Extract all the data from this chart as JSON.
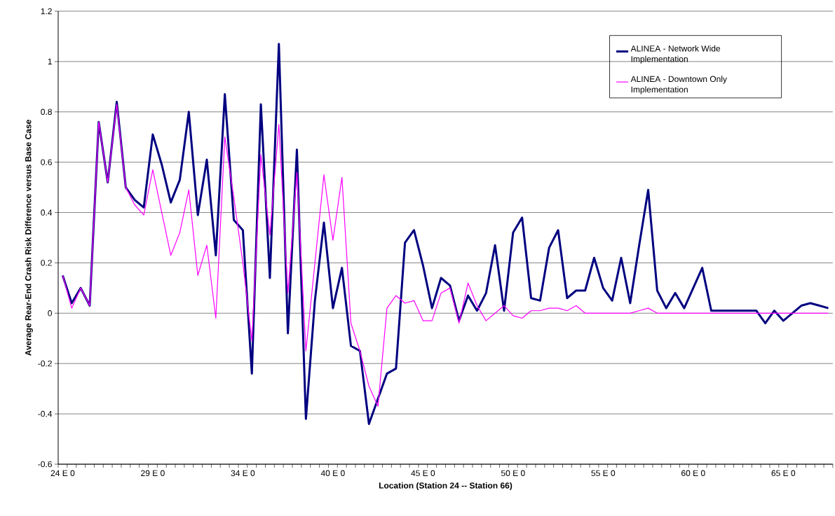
{
  "chart_data": {
    "type": "line",
    "ylabel": "Average Rear-End Crash Risk Difference versus Base Case",
    "xlabel": "Location (Station 24 -- Station 66)",
    "categories": [
      "24 E 0",
      null,
      null,
      null,
      null,
      null,
      null,
      null,
      null,
      null,
      "29 E 0",
      null,
      null,
      null,
      null,
      null,
      null,
      null,
      null,
      null,
      "34 E 0",
      null,
      null,
      null,
      null,
      null,
      null,
      null,
      null,
      null,
      "40 E 0",
      null,
      null,
      null,
      null,
      null,
      null,
      null,
      null,
      null,
      "45 E 0",
      null,
      null,
      null,
      null,
      null,
      null,
      null,
      null,
      null,
      "50 E 0",
      null,
      null,
      null,
      null,
      null,
      null,
      null,
      null,
      null,
      "55 E 0",
      null,
      null,
      null,
      null,
      null,
      null,
      null,
      null,
      null,
      "60 E 0",
      null,
      null,
      null,
      null,
      null,
      null,
      null,
      null,
      null,
      "65 E 0",
      null,
      null,
      null,
      null,
      null
    ],
    "series": [
      {
        "name": "ALINEA - Network Wide Implementation",
        "color": "#000080",
        "values": [
          0.15,
          0.04,
          0.1,
          0.03,
          0.76,
          0.52,
          0.84,
          0.5,
          0.45,
          0.42,
          0.71,
          0.59,
          0.44,
          0.53,
          0.8,
          0.39,
          0.61,
          0.23,
          0.87,
          0.37,
          0.33,
          -0.24,
          0.83,
          0.14,
          1.07,
          -0.08,
          0.65,
          -0.42,
          0.05,
          0.36,
          0.02,
          0.18,
          -0.13,
          -0.15,
          -0.44,
          -0.34,
          -0.24,
          -0.22,
          0.28,
          0.33,
          0.19,
          0.02,
          0.14,
          0.11,
          -0.03,
          0.07,
          0.01,
          0.08,
          0.27,
          0.01,
          0.32,
          0.38,
          0.06,
          0.05,
          0.26,
          0.33,
          0.06,
          0.09,
          0.09,
          0.22,
          0.1,
          0.05,
          0.22,
          0.04,
          0.27,
          0.49,
          0.09,
          0.02,
          0.08,
          0.02,
          0.1,
          0.18,
          0.01,
          0.01,
          0.01,
          0.01,
          0.01,
          0.01,
          -0.04,
          0.01,
          -0.03,
          0,
          0.03,
          0.04,
          0.03,
          0.02
        ]
      },
      {
        "name": "ALINEA - Downtown Only Implementation",
        "color": "#ff00ff",
        "values": [
          0.15,
          0.02,
          0.1,
          0.03,
          0.76,
          0.52,
          0.83,
          0.5,
          0.43,
          0.39,
          0.57,
          0.4,
          0.23,
          0.32,
          0.49,
          0.15,
          0.27,
          -0.02,
          0.7,
          0.46,
          0.2,
          -0.11,
          0.63,
          0.31,
          0.75,
          0.08,
          0.56,
          -0.15,
          0.2,
          0.55,
          0.29,
          0.54,
          -0.04,
          -0.15,
          -0.29,
          -0.37,
          0.02,
          0.07,
          0.04,
          0.05,
          -0.03,
          -0.03,
          0.08,
          0.1,
          -0.04,
          0.12,
          0.03,
          -0.03,
          0,
          0.03,
          -0.01,
          -0.02,
          0.01,
          0.01,
          0.02,
          0.02,
          0.01,
          0.03,
          0,
          0,
          0,
          0,
          0,
          0,
          0.01,
          0.02,
          0,
          0,
          0,
          0,
          0,
          0,
          0,
          0,
          0,
          0,
          0,
          0,
          0,
          0,
          0,
          0,
          0,
          0,
          0,
          0
        ]
      }
    ],
    "ylim": [
      -0.6,
      1.2
    ],
    "yticks": [
      -0.6,
      -0.4,
      -0.2,
      0,
      0.2,
      0.4,
      0.6,
      0.8,
      1,
      1.2
    ],
    "grid": "y",
    "legend": "top right"
  }
}
